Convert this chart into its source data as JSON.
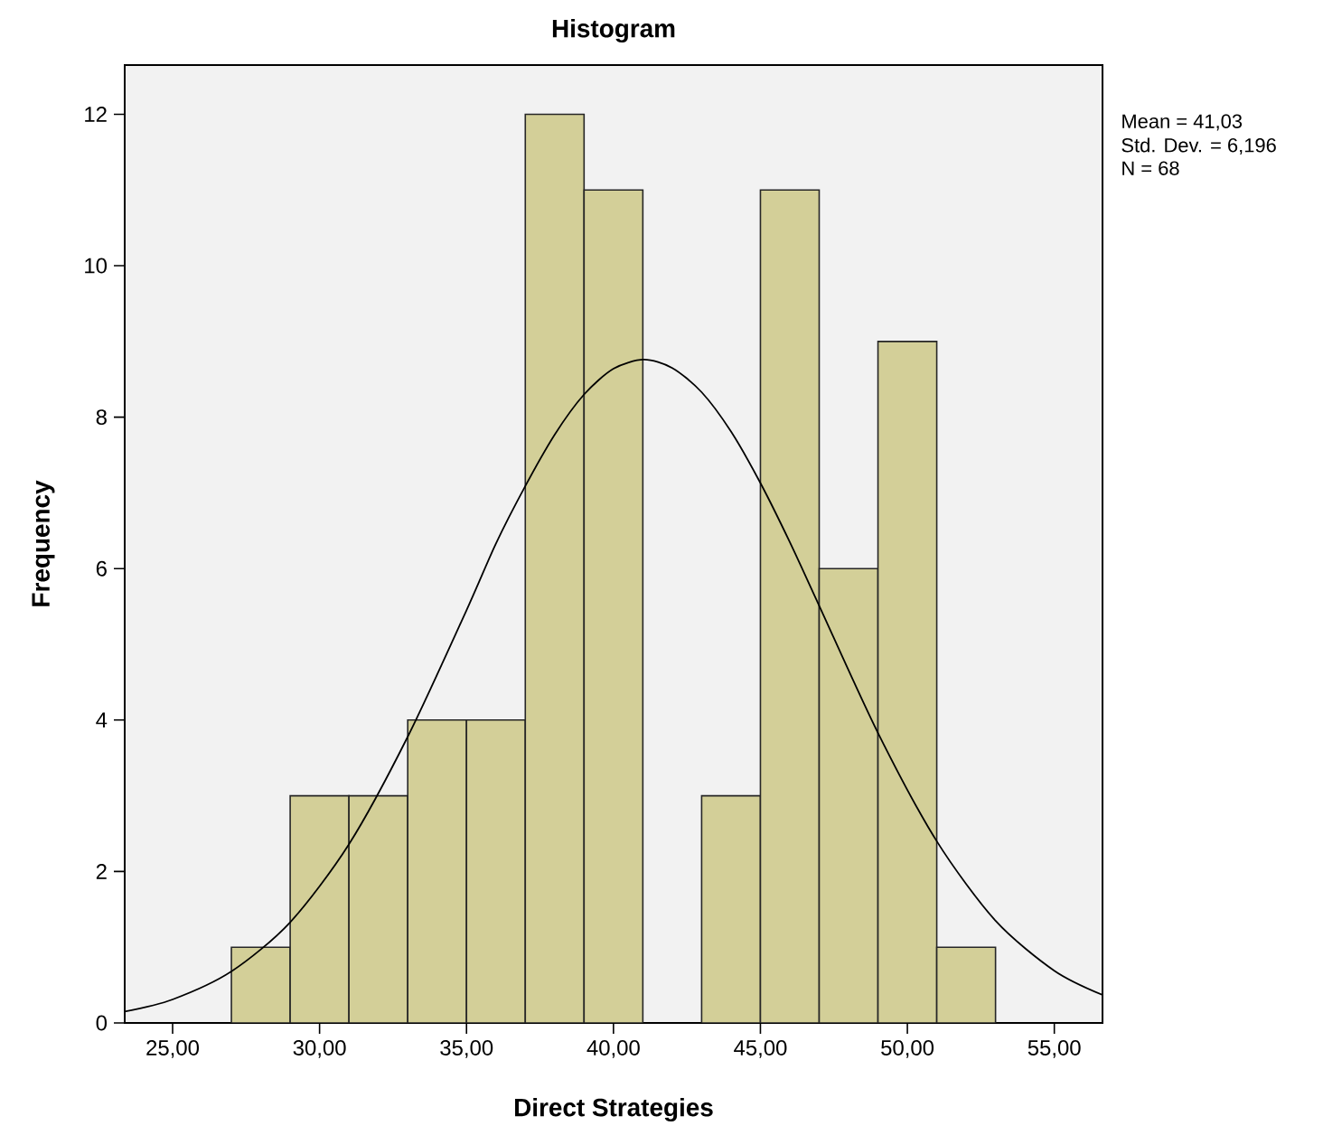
{
  "chart_data": {
    "type": "histogram",
    "title": "Histogram",
    "xlabel": "Direct Strategies",
    "ylabel": "Frequency",
    "bins": [
      27,
      29,
      31,
      33,
      35,
      37,
      39,
      41,
      43,
      45,
      47,
      49,
      51,
      53
    ],
    "values": [
      1,
      3,
      3,
      4,
      4,
      12,
      11,
      0,
      3,
      11,
      6,
      9,
      1
    ],
    "color": "#d3cf98",
    "series": [
      {
        "type": "line",
        "color": "#000000",
        "x": [
          23.37,
          25,
          27,
          29,
          31,
          33,
          35,
          36,
          37,
          38,
          39,
          40,
          41.03,
          42,
          43,
          44,
          45,
          46,
          47,
          49,
          51,
          53,
          55,
          56.64
        ],
        "values": [
          0.15,
          0.31,
          0.68,
          1.33,
          2.36,
          3.78,
          5.45,
          6.33,
          7.09,
          7.77,
          8.3,
          8.64,
          8.76,
          8.65,
          8.33,
          7.81,
          7.13,
          6.35,
          5.51,
          3.83,
          2.4,
          1.35,
          0.69,
          0.37
        ]
      }
    ],
    "xlim": [
      23.37,
      56.64
    ],
    "ylim": [
      0,
      12.65
    ],
    "xticks": [
      {
        "value": 25,
        "label": "25,00"
      },
      {
        "value": 30,
        "label": "30,00"
      },
      {
        "value": 35,
        "label": "35,00"
      },
      {
        "value": 40,
        "label": "40,00"
      },
      {
        "value": 45,
        "label": "45,00"
      },
      {
        "value": 50,
        "label": "50,00"
      },
      {
        "value": 55,
        "label": "55,00"
      }
    ],
    "yticks": [
      0,
      2,
      4,
      6,
      8,
      10,
      12
    ],
    "annotations": [
      "Mean = 41,03",
      "Std. Dev. = 6,196",
      "N = 68"
    ]
  }
}
